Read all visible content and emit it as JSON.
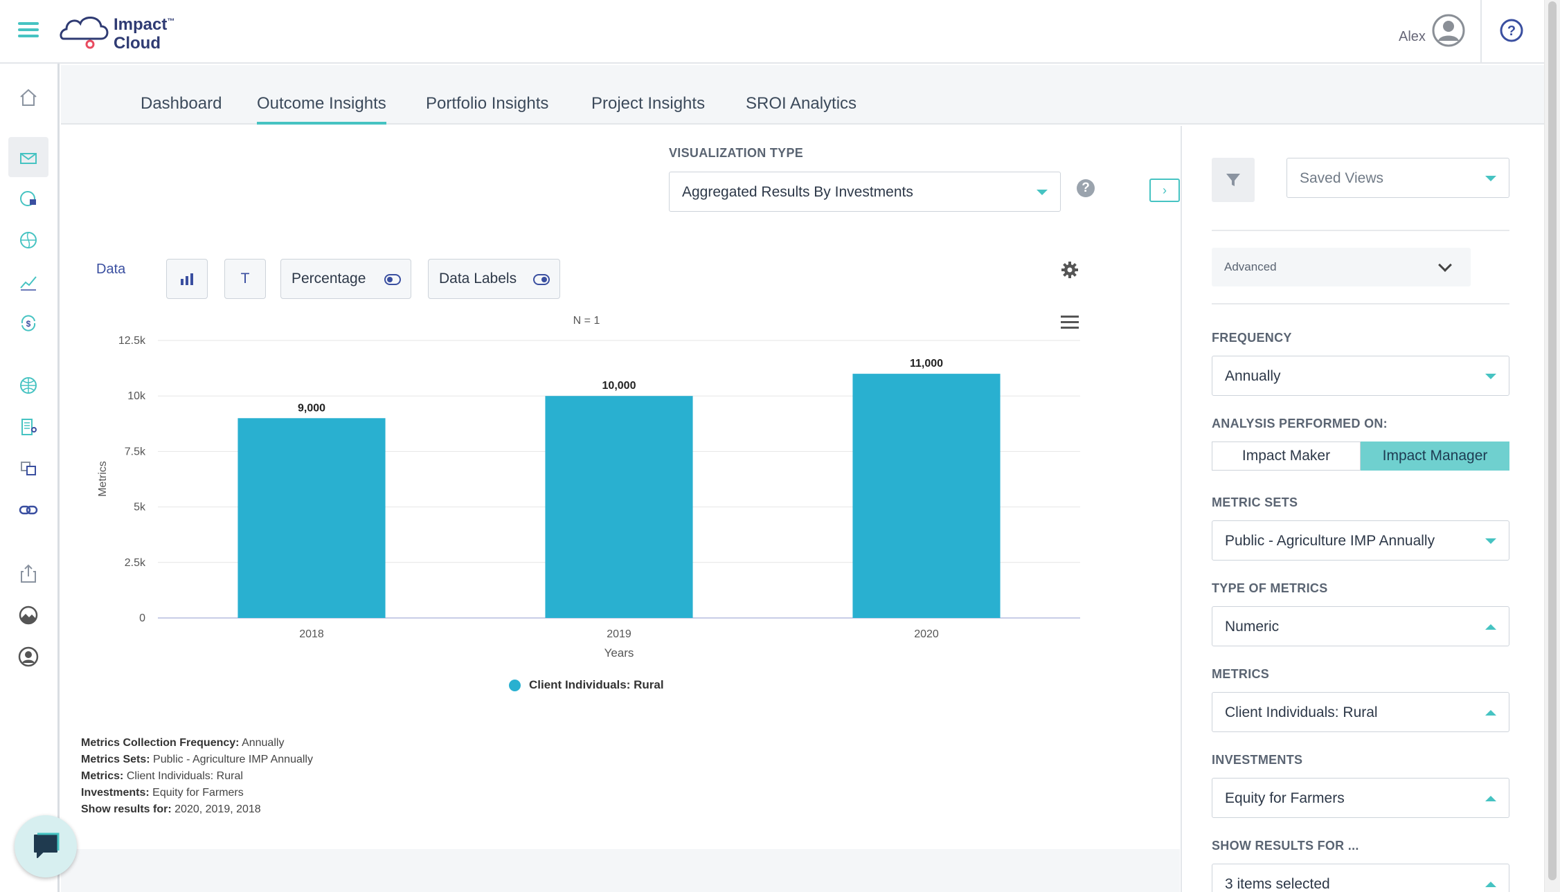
{
  "app": {
    "logo_line1": "Impact",
    "logo_tm": "™",
    "logo_line2": "Cloud",
    "user_name": "Alex",
    "help_symbol": "?"
  },
  "icons": {
    "menu": "hamburger-icon",
    "avatar": "user-circle-icon",
    "help": "question-circle-icon",
    "sidebar": [
      "home-icon",
      "inbox-icon",
      "pie-chart-icon",
      "globe-icon",
      "line-chart-icon",
      "dollar-cycle-icon",
      "world-icon",
      "building-icon",
      "translate-icon",
      "link-icon",
      "share-icon",
      "landscape-icon",
      "profile-icon"
    ]
  },
  "tabs": [
    {
      "label": "Dashboard",
      "active": false
    },
    {
      "label": "Outcome Insights",
      "active": true
    },
    {
      "label": "Portfolio Insights",
      "active": false
    },
    {
      "label": "Project Insights",
      "active": false
    },
    {
      "label": "SROI Analytics",
      "active": false
    }
  ],
  "visualization": {
    "label": "VISUALIZATION TYPE",
    "value": "Aggregated Results By Investments",
    "help": "?"
  },
  "toolbar": {
    "data_label": "Data",
    "text_btn": "T",
    "percentage_label": "Percentage",
    "percentage_on": false,
    "data_labels_label": "Data Labels",
    "data_labels_on": true
  },
  "chart_data": {
    "type": "bar",
    "title": "N = 1",
    "categories": [
      "2018",
      "2019",
      "2020"
    ],
    "series": [
      {
        "name": "Client Individuals: Rural",
        "values": [
          9000,
          10000,
          11000
        ],
        "color": "#29b0d0"
      }
    ],
    "value_labels": [
      "9,000",
      "10,000",
      "11,000"
    ],
    "xlabel": "Years",
    "ylabel": "Metrics",
    "ylim": [
      0,
      12500
    ],
    "yticks": [
      0,
      2500,
      5000,
      7500,
      10000,
      12500
    ],
    "ytick_labels": [
      "0",
      "2.5k",
      "5k",
      "7.5k",
      "10k",
      "12.5k"
    ],
    "grid": true,
    "legend_position": "bottom-center"
  },
  "summary": [
    {
      "key": "Metrics Collection Frequency:",
      "value": "Annually"
    },
    {
      "key": "Metrics Sets:",
      "value": "Public - Agriculture IMP Annually"
    },
    {
      "key": "Metrics:",
      "value": "Client Individuals: Rural"
    },
    {
      "key": "Investments:",
      "value": "Equity for Farmers"
    },
    {
      "key": "Show results for:",
      "value": "2020, 2019, 2018"
    }
  ],
  "filters": {
    "saved_views": "Saved Views",
    "advanced": "Advanced",
    "frequency_label": "FREQUENCY",
    "frequency": "Annually",
    "analysis_label": "ANALYSIS PERFORMED ON:",
    "analysis_options": [
      "Impact Maker",
      "Impact Manager"
    ],
    "analysis_selected": "Impact Manager",
    "metric_sets_label": "METRIC SETS",
    "metric_sets": "Public - Agriculture IMP Annually",
    "type_label": "TYPE OF METRICS",
    "type": "Numeric",
    "metrics_label": "METRICS",
    "metrics": "Client Individuals: Rural",
    "investments_label": "INVESTMENTS",
    "investments": "Equity for Farmers",
    "show_results_label": "SHOW RESULTS FOR ...",
    "show_results": "3 items selected"
  },
  "colors": {
    "accent": "#46c3c2",
    "bar": "#29b0d0",
    "primary": "#3a4fa0"
  }
}
